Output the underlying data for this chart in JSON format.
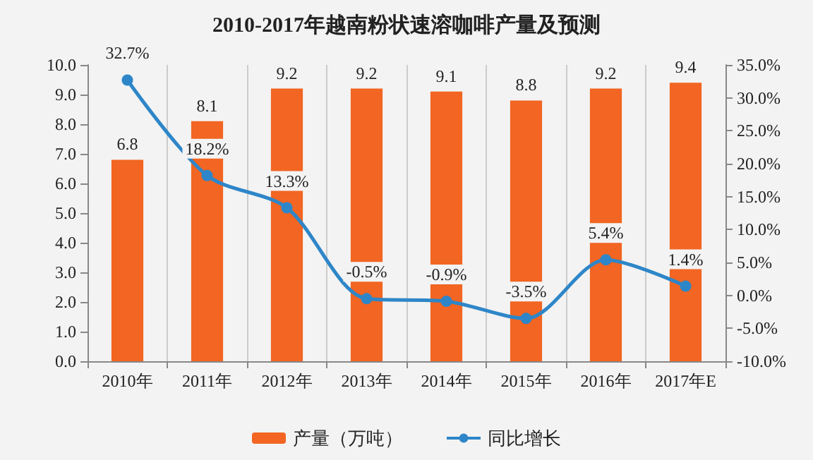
{
  "chart_data": {
    "type": "bar",
    "title": "2010-2017年越南粉状速溶咖啡产量及预测",
    "categories": [
      "2010年",
      "2011年",
      "2012年",
      "2013年",
      "2014年",
      "2015年",
      "2016年",
      "2017年E"
    ],
    "series": [
      {
        "name": "产量（万吨）",
        "color": "#f26522",
        "values": [
          6.8,
          8.1,
          9.2,
          9.2,
          9.1,
          8.8,
          9.2,
          9.4
        ],
        "value_labels": [
          "6.8",
          "8.1",
          "9.2",
          "9.2",
          "9.1",
          "8.8",
          "9.2",
          "9.4"
        ]
      },
      {
        "name": "同比增长",
        "type": "line",
        "axis": "y2",
        "color": "#2e86c8",
        "marker": "circle",
        "values": [
          32.7,
          18.2,
          13.3,
          -0.5,
          -0.9,
          -3.5,
          5.4,
          1.4
        ],
        "value_labels": [
          "32.7%",
          "18.2%",
          "13.3%",
          "-0.5%",
          "-0.9%",
          "-3.5%",
          "5.4%",
          "1.4%"
        ]
      }
    ],
    "ylim": [
      0,
      10
    ],
    "yticks": [
      {
        "value": 0,
        "label": "0.0"
      },
      {
        "value": 1,
        "label": "1.0"
      },
      {
        "value": 2,
        "label": "2.0"
      },
      {
        "value": 3,
        "label": "3.0"
      },
      {
        "value": 4,
        "label": "4.0"
      },
      {
        "value": 5,
        "label": "5.0"
      },
      {
        "value": 6,
        "label": "6.0"
      },
      {
        "value": 7,
        "label": "7.0"
      },
      {
        "value": 8,
        "label": "8.0"
      },
      {
        "value": 9,
        "label": "9.0"
      },
      {
        "value": 10,
        "label": "10.0"
      }
    ],
    "y2lim": [
      -10,
      35
    ],
    "y2ticks": [
      {
        "value": -10,
        "label": "-10.0%"
      },
      {
        "value": -5,
        "label": "-5.0%"
      },
      {
        "value": 0,
        "label": "0.0%"
      },
      {
        "value": 5,
        "label": "5.0%"
      },
      {
        "value": 10,
        "label": "10.0%"
      },
      {
        "value": 15,
        "label": "15.0%"
      },
      {
        "value": 20,
        "label": "20.0%"
      },
      {
        "value": 25,
        "label": "25.0%"
      },
      {
        "value": 30,
        "label": "30.0%"
      },
      {
        "value": 35,
        "label": "35.0%"
      }
    ],
    "grid": "x",
    "legend": "bottom"
  }
}
